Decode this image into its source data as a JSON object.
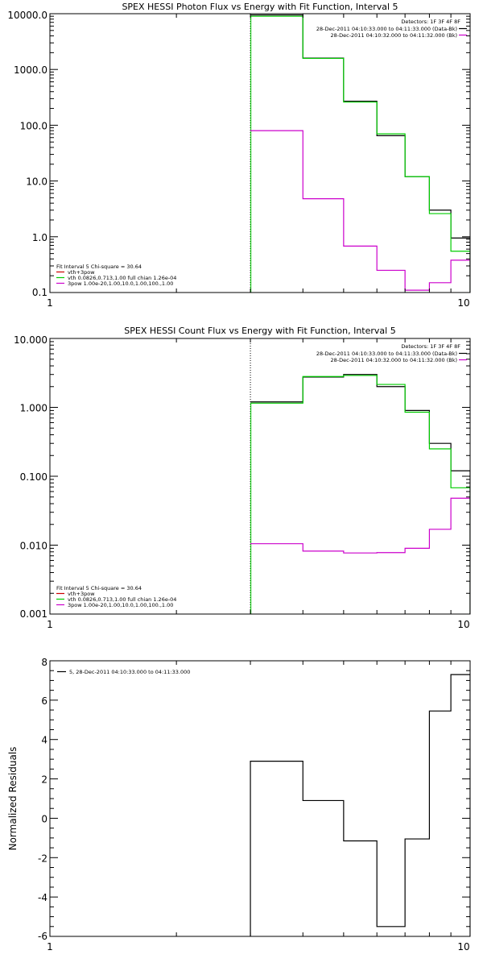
{
  "colors": {
    "black": "#000000",
    "green": "#00cc00",
    "magenta": "#cc00cc",
    "red": "#cc0000",
    "background": "#ffffff"
  },
  "chart_data": [
    {
      "type": "line",
      "title": "SPEX HESSI Photon Flux vs Energy with Fit Function, Interval 5",
      "xscale": "log",
      "yscale": "log",
      "xlim": [
        1,
        10
      ],
      "ylim": [
        0.1,
        10000
      ],
      "x_ticks": [
        1,
        10
      ],
      "x_tick_labels": [
        "1",
        "10"
      ],
      "y_ticks": [
        0.1,
        1,
        10,
        100,
        1000,
        10000
      ],
      "y_tick_labels": [
        "0.1",
        "1.0",
        "10.0",
        "100.0",
        "1000.0",
        "10000.0"
      ],
      "vline_x": 3.0,
      "bin_edges": [
        3.0,
        4.0,
        5.0,
        6.0,
        7.0,
        8.0,
        9.0,
        10.0
      ],
      "series": [
        {
          "role": "data",
          "color": "#000000",
          "values": [
            9500,
            1600,
            270,
            65,
            12,
            3.0,
            0.95
          ]
        },
        {
          "role": "fit",
          "color": "#00cc00",
          "values": [
            9000,
            1580,
            260,
            70,
            12,
            2.6,
            0.55
          ]
        },
        {
          "role": "background",
          "color": "#cc00cc",
          "values": [
            80,
            4.8,
            0.68,
            0.25,
            0.11,
            0.15,
            0.38
          ]
        }
      ],
      "legend_topright": {
        "detectors": "Detectors: 1F 3F 4F 8F",
        "lines": [
          {
            "text": "28-Dec-2011 04:10:33.000 to 04:11:33.000 (Data-Bk)",
            "color": "#000000"
          },
          {
            "text": "28-Dec-2011 04:10:32.000 to 04:11:32.000 (Bk)",
            "color": "#cc00cc"
          }
        ]
      },
      "legend_bottomleft": {
        "header": "Fit Interval 5   Chi-square = 30.64",
        "lines": [
          {
            "text": "vth+3pow",
            "color": "#cc0000"
          },
          {
            "text": "vth 0.0826,0.713,1.00  full chian 1.26e-04",
            "color": "#00cc00"
          },
          {
            "text": "3pow 1.00e-20,1.00,10.0,1.00,100.,1.00",
            "color": "#cc00cc"
          }
        ]
      }
    },
    {
      "type": "line",
      "title": "SPEX HESSI Count Flux vs Energy with Fit Function, Interval 5",
      "xscale": "log",
      "yscale": "log",
      "xlim": [
        1,
        10
      ],
      "ylim": [
        0.001,
        10
      ],
      "x_ticks": [
        1,
        10
      ],
      "x_tick_labels": [
        "1",
        "10"
      ],
      "y_ticks": [
        0.001,
        0.01,
        0.1,
        1,
        10
      ],
      "y_tick_labels": [
        "0.001",
        "0.010",
        "0.100",
        "1.000",
        "10.000"
      ],
      "vline_x": 3.0,
      "bin_edges": [
        3.0,
        4.0,
        5.0,
        6.0,
        7.0,
        8.0,
        9.0,
        10.0
      ],
      "series": [
        {
          "role": "data",
          "color": "#000000",
          "values": [
            1.2,
            2.75,
            3.0,
            2.0,
            0.9,
            0.3,
            0.12
          ]
        },
        {
          "role": "fit",
          "color": "#00cc00",
          "values": [
            1.15,
            2.8,
            2.9,
            2.15,
            0.85,
            0.25,
            0.068
          ]
        },
        {
          "role": "background",
          "color": "#cc00cc",
          "values": [
            0.0105,
            0.0082,
            0.0077,
            0.0078,
            0.009,
            0.017,
            0.048
          ]
        }
      ],
      "legend_topright": {
        "detectors": "Detectors: 1F 3F 4F 8F",
        "lines": [
          {
            "text": "28-Dec-2011 04:10:33.000 to 04:11:33.000 (Data-Bk)",
            "color": "#000000"
          },
          {
            "text": "28-Dec-2011 04:10:32.000 to 04:11:32.000 (Bk)",
            "color": "#cc00cc"
          }
        ]
      },
      "legend_bottomleft": {
        "header": "Fit Interval 5   Chi-square = 30.64",
        "lines": [
          {
            "text": "vth+3pow",
            "color": "#cc0000"
          },
          {
            "text": "vth 0.0826,0.713,1.00  full chian 1.26e-04",
            "color": "#00cc00"
          },
          {
            "text": "3pow 1.00e-20,1.00,10.0,1.00,100.,1.00",
            "color": "#cc00cc"
          }
        ]
      }
    },
    {
      "type": "line",
      "title": "",
      "xscale": "log",
      "yscale": "linear",
      "xlim": [
        1,
        10
      ],
      "ylim": [
        -6,
        8
      ],
      "x_ticks": [
        1,
        10
      ],
      "x_tick_labels": [
        "1",
        "10"
      ],
      "y_ticks": [
        -6,
        -4,
        -2,
        0,
        2,
        4,
        6,
        8
      ],
      "y_tick_labels": [
        "-6",
        "-4",
        "-2",
        "0",
        "2",
        "4",
        "6",
        "8"
      ],
      "ylabel": "Normalized Residuals",
      "bin_edges": [
        3.0,
        4.0,
        5.0,
        6.0,
        7.0,
        8.0,
        9.0,
        10.0
      ],
      "series": [
        {
          "role": "residuals",
          "color": "#000000",
          "values": [
            2.9,
            0.9,
            -1.15,
            -5.5,
            -1.05,
            5.45,
            7.3
          ]
        }
      ],
      "legend_topleft": {
        "lines": [
          {
            "text": "5, 28-Dec-2011 04:10:33.000 to 04:11:33.000",
            "color": "#000000"
          }
        ]
      }
    }
  ]
}
